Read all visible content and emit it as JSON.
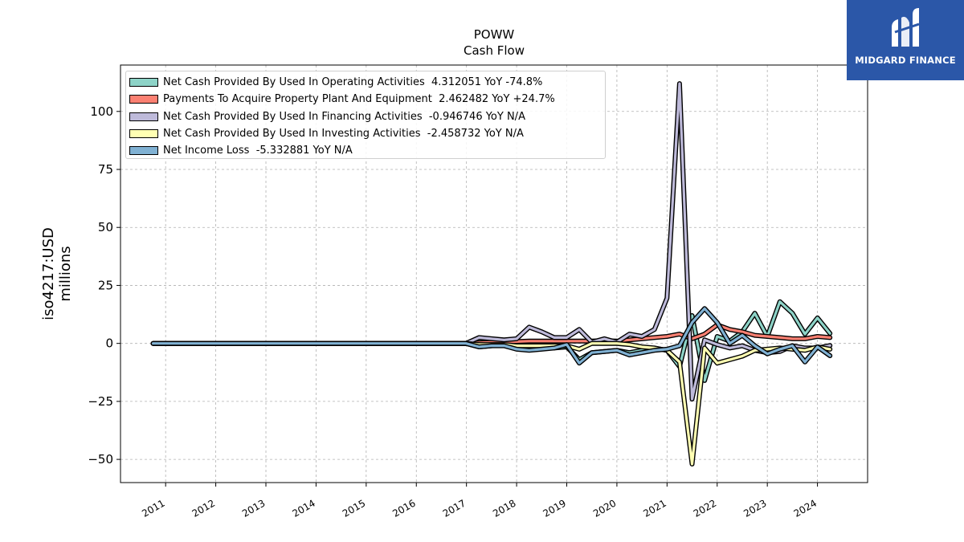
{
  "chart_data": {
    "type": "line",
    "title": "POWW",
    "subtitle": "Cash Flow",
    "ylabel": "iso4217:USD",
    "ylabel2": "millions",
    "xlabel": "",
    "ylim": [
      -60,
      120
    ],
    "xlim": [
      2010.1,
      2025.0
    ],
    "yticks": [
      -50,
      -25,
      0,
      25,
      50,
      75,
      100
    ],
    "ytick_labels": [
      "−50",
      "−25",
      "0",
      "25",
      "50",
      "75",
      "100"
    ],
    "xticks": [
      2011,
      2012,
      2013,
      2014,
      2015,
      2016,
      2017,
      2018,
      2019,
      2020,
      2021,
      2022,
      2023,
      2024
    ],
    "xtick_labels": [
      "2011",
      "2012",
      "2013",
      "2014",
      "2015",
      "2016",
      "2017",
      "2018",
      "2019",
      "2020",
      "2021",
      "2022",
      "2023",
      "2024"
    ],
    "grid": true,
    "legend_position": "top-left",
    "series": [
      {
        "name": "Net Cash Provided By Used In Operating Activities",
        "legend": "Net Cash Provided By Used In Operating Activities  4.312051 YoY -74.8%",
        "color": "#8dd3c7",
        "x": [
          2010.75,
          2016.99,
          2017.25,
          2017.5,
          2017.75,
          2018.0,
          2018.25,
          2018.5,
          2018.75,
          2019.0,
          2019.25,
          2019.5,
          2019.75,
          2020.0,
          2020.25,
          2020.5,
          2020.75,
          2021.0,
          2021.25,
          2021.5,
          2021.75,
          2022.0,
          2022.25,
          2022.5,
          2022.75,
          2023.0,
          2023.25,
          2023.5,
          2023.75,
          2024.0,
          2024.25
        ],
        "y": [
          0,
          0,
          -1.5,
          -1,
          -0.5,
          -2,
          -2.5,
          -2,
          -2,
          -1.5,
          -7,
          -4,
          -3.5,
          -3,
          -4,
          -3,
          -2,
          -3,
          -10,
          12,
          -16,
          3,
          1,
          5,
          13,
          3,
          18,
          13,
          4,
          11,
          4.3
        ]
      },
      {
        "name": "Payments To Acquire Property Plant And Equipment",
        "legend": "Payments To Acquire Property Plant And Equipment  2.462482 YoY +24.7%",
        "color": "#fb8072",
        "x": [
          2010.75,
          2016.99,
          2017.25,
          2017.5,
          2017.75,
          2018.0,
          2018.25,
          2018.5,
          2018.75,
          2019.0,
          2019.25,
          2019.5,
          2019.75,
          2020.0,
          2020.25,
          2020.5,
          2020.75,
          2021.0,
          2021.25,
          2021.5,
          2021.75,
          2022.0,
          2022.25,
          2022.5,
          2022.75,
          2023.0,
          2023.25,
          2023.5,
          2023.75,
          2024.0,
          2024.25
        ],
        "y": [
          0,
          0,
          0.3,
          0.5,
          0.5,
          0.8,
          1,
          1,
          1,
          1,
          1,
          1,
          1.2,
          1,
          1.5,
          2,
          2.5,
          3,
          4,
          2,
          4,
          8,
          6,
          5,
          3.5,
          3,
          2.5,
          2,
          2,
          3,
          2.5
        ]
      },
      {
        "name": "Net Cash Provided By Used In Financing Activities",
        "legend": "Net Cash Provided By Used In Financing Activities  -0.946746 YoY N/A",
        "color": "#bebada",
        "x": [
          2010.75,
          2016.99,
          2017.25,
          2017.5,
          2017.75,
          2018.0,
          2018.25,
          2018.5,
          2018.75,
          2019.0,
          2019.25,
          2019.5,
          2019.75,
          2020.0,
          2020.25,
          2020.5,
          2020.75,
          2021.0,
          2021.25,
          2021.5,
          2021.75,
          2022.0,
          2022.25,
          2022.5,
          2022.75,
          2023.0,
          2023.25,
          2023.5,
          2023.75,
          2024.0,
          2024.25
        ],
        "y": [
          0,
          0,
          2.5,
          2,
          1.5,
          2,
          7,
          5,
          2.5,
          2.5,
          6,
          0.5,
          2,
          0.5,
          4,
          3,
          6,
          19.5,
          112,
          -24,
          1.5,
          -0.5,
          -2,
          -1,
          -3,
          -4,
          -3.5,
          -1,
          -2,
          -2,
          -0.9
        ]
      },
      {
        "name": "Net Cash Provided By Used In Investing Activities",
        "legend": "Net Cash Provided By Used In Investing Activities  -2.458732 YoY N/A",
        "color": "#ffffb3",
        "x": [
          2010.75,
          2016.99,
          2017.25,
          2017.5,
          2017.75,
          2018.0,
          2018.25,
          2018.5,
          2018.75,
          2019.0,
          2019.25,
          2019.5,
          2019.75,
          2020.0,
          2020.25,
          2020.5,
          2020.75,
          2021.0,
          2021.25,
          2021.5,
          2021.75,
          2022.0,
          2022.25,
          2022.5,
          2022.75,
          2023.0,
          2023.25,
          2023.5,
          2023.75,
          2024.0,
          2024.25
        ],
        "y": [
          0,
          0,
          -0.5,
          -0.5,
          -0.5,
          -1,
          -1,
          -1,
          -1,
          -1,
          -2.5,
          0,
          0,
          0,
          -0.5,
          -1.5,
          -2,
          -3,
          -8,
          -52,
          -2,
          -8.5,
          -7,
          -5.5,
          -3,
          -2.5,
          -2,
          -2.5,
          -3,
          -1.5,
          -2.5
        ]
      },
      {
        "name": "Net Income Loss",
        "legend": "Net Income Loss  -5.332881 YoY N/A",
        "color": "#80b1d3",
        "x": [
          2010.75,
          2016.99,
          2017.25,
          2017.5,
          2017.75,
          2018.0,
          2018.25,
          2018.5,
          2018.75,
          2019.0,
          2019.25,
          2019.5,
          2019.75,
          2020.0,
          2020.25,
          2020.5,
          2020.75,
          2021.0,
          2021.25,
          2021.5,
          2021.75,
          2022.0,
          2022.25,
          2022.5,
          2022.75,
          2023.0,
          2023.25,
          2023.5,
          2023.75,
          2024.0,
          2024.25
        ],
        "y": [
          0,
          0,
          -1.5,
          -1,
          -1,
          -2.5,
          -3,
          -2.5,
          -2,
          -0.5,
          -8.5,
          -4,
          -3.5,
          -3,
          -5,
          -4,
          -3,
          -2.5,
          -1,
          9,
          15,
          9,
          0,
          3.5,
          -1,
          -4.5,
          -2.5,
          -1,
          -8,
          -1.5,
          -5.3
        ]
      }
    ]
  },
  "logo": {
    "text": "MIDGARD FINANCE",
    "background": "#2b57a8"
  }
}
